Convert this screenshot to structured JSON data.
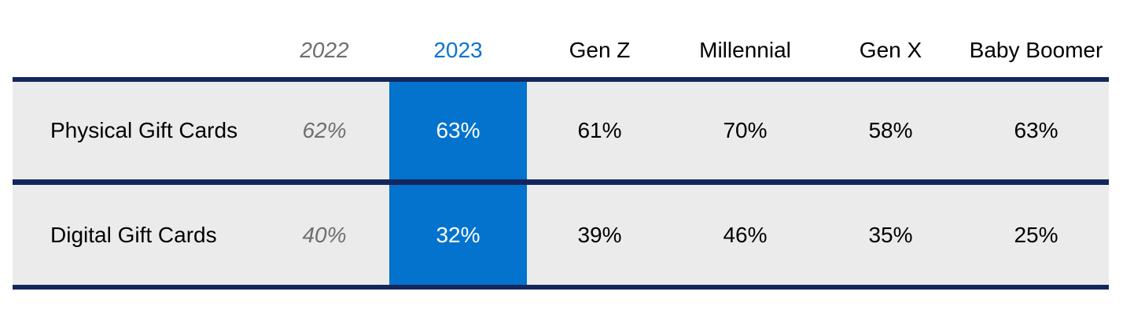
{
  "chart_data": {
    "type": "table",
    "header": [
      "",
      "2022",
      "2023",
      "Gen Z",
      "Millennial",
      "Gen X",
      "Baby Boomer"
    ],
    "rows": [
      {
        "label": "Physical Gift Cards",
        "values": [
          "62%",
          "63%",
          "61%",
          "70%",
          "58%",
          "63%"
        ]
      },
      {
        "label": "Digital Gift Cards",
        "values": [
          "40%",
          "32%",
          "39%",
          "46%",
          "35%",
          "25%"
        ]
      }
    ],
    "highlight_column": "2023",
    "muted_column": "2022",
    "layout_hints": {
      "highlighted_column_fill": "full-height band behind 2023 values",
      "rules": "horizontal navy rules below header, between rows, and below last row"
    }
  },
  "colors": {
    "highlight_blue": "#0473cd",
    "highlight_header_text": "#0b74d1",
    "navy_rule": "#14265d",
    "row_background": "#ebebeb",
    "muted_gray_text": "#6e6e6e",
    "body_text": "#000000",
    "page_background": "#ffffff"
  }
}
